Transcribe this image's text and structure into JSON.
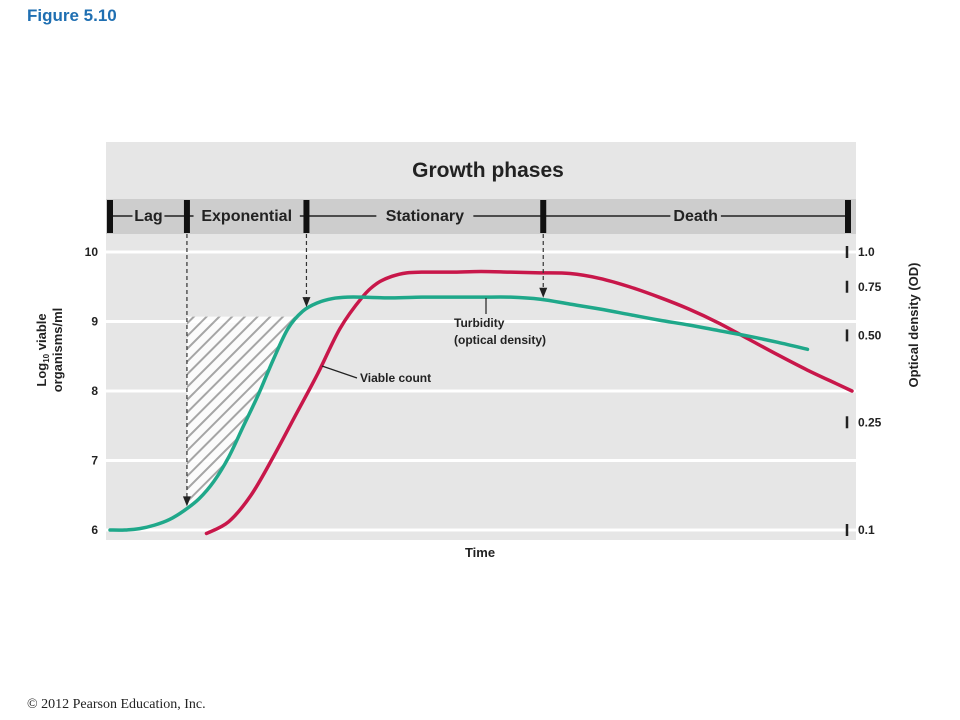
{
  "figure_label": "Figure 5.10",
  "copyright": "© 2012 Pearson Education, Inc.",
  "colors": {
    "plot_bg": "#e6e6e6",
    "band_bg": "#cdcdcd",
    "viable_count": "#c8174a",
    "turbidity": "#1fa88a",
    "hatch": "#9a9a9a",
    "text": "#222222"
  },
  "chart_data": {
    "type": "line",
    "title": "Growth phases",
    "xlabel": "Time",
    "ylabel_left": "Log10 viable organisms/ml",
    "ylabel_right": "Optical density (OD)",
    "ylim_left": [
      5.95,
      10.5
    ],
    "yticks_left": [
      6,
      7,
      8,
      9,
      10
    ],
    "yticks_right": [
      {
        "label": "1.0",
        "left_value": 10
      },
      {
        "label": "0.75",
        "left_value": 9.5
      },
      {
        "label": "0.50",
        "left_value": 8.8
      },
      {
        "label": "0.25",
        "left_value": 7.55
      },
      {
        "label": "0.1",
        "left_value": 6
      }
    ],
    "xlim": [
      0,
      100
    ],
    "grid": true,
    "phases": [
      {
        "name": "Lag",
        "start": 0,
        "end": 10.3
      },
      {
        "name": "Exponential",
        "start": 10.3,
        "end": 26.3
      },
      {
        "name": "Stationary",
        "start": 26.3,
        "end": 58
      },
      {
        "name": "Death",
        "start": 58,
        "end": 98.8
      }
    ],
    "series": [
      {
        "name": "Viable count",
        "x": [
          13,
          16,
          19,
          22,
          25,
          28,
          31,
          34,
          36,
          38,
          40,
          42,
          46,
          50,
          54,
          58,
          62,
          66,
          70,
          74,
          78,
          82,
          86,
          90,
          94,
          98,
          100
        ],
        "y": [
          5.95,
          6.12,
          6.5,
          7.05,
          7.65,
          8.25,
          8.9,
          9.35,
          9.55,
          9.65,
          9.7,
          9.71,
          9.71,
          9.72,
          9.71,
          9.7,
          9.69,
          9.62,
          9.5,
          9.35,
          9.18,
          8.98,
          8.75,
          8.52,
          8.3,
          8.1,
          8.0
        ]
      },
      {
        "name": "Turbidity (optical density)",
        "x": [
          0,
          2,
          4,
          6,
          8,
          10,
          12,
          14,
          16,
          18,
          20,
          22,
          24,
          26,
          28,
          30,
          32,
          34,
          38,
          42,
          46,
          50,
          54,
          58,
          62,
          66,
          70,
          74,
          78,
          82,
          86,
          90,
          94
        ],
        "y": [
          6.0,
          6.0,
          6.02,
          6.07,
          6.15,
          6.28,
          6.45,
          6.7,
          7.05,
          7.5,
          7.95,
          8.45,
          8.9,
          9.15,
          9.27,
          9.33,
          9.35,
          9.35,
          9.34,
          9.35,
          9.35,
          9.35,
          9.35,
          9.32,
          9.25,
          9.18,
          9.1,
          9.02,
          8.95,
          8.87,
          8.79,
          8.7,
          8.6
        ]
      }
    ],
    "annotations": [
      {
        "text": "Turbidity",
        "points_to": "Turbidity (optical density)"
      },
      {
        "text": "(optical density)",
        "points_to": "Turbidity (optical density)"
      },
      {
        "text": "Viable count",
        "points_to": "Viable count"
      }
    ],
    "shaded_region": {
      "x_start": 10.3,
      "x_end": 26.3,
      "y_top": 9.07,
      "follows_series": "Turbidity (optical density)",
      "pattern": "diagonal-hatch"
    }
  }
}
